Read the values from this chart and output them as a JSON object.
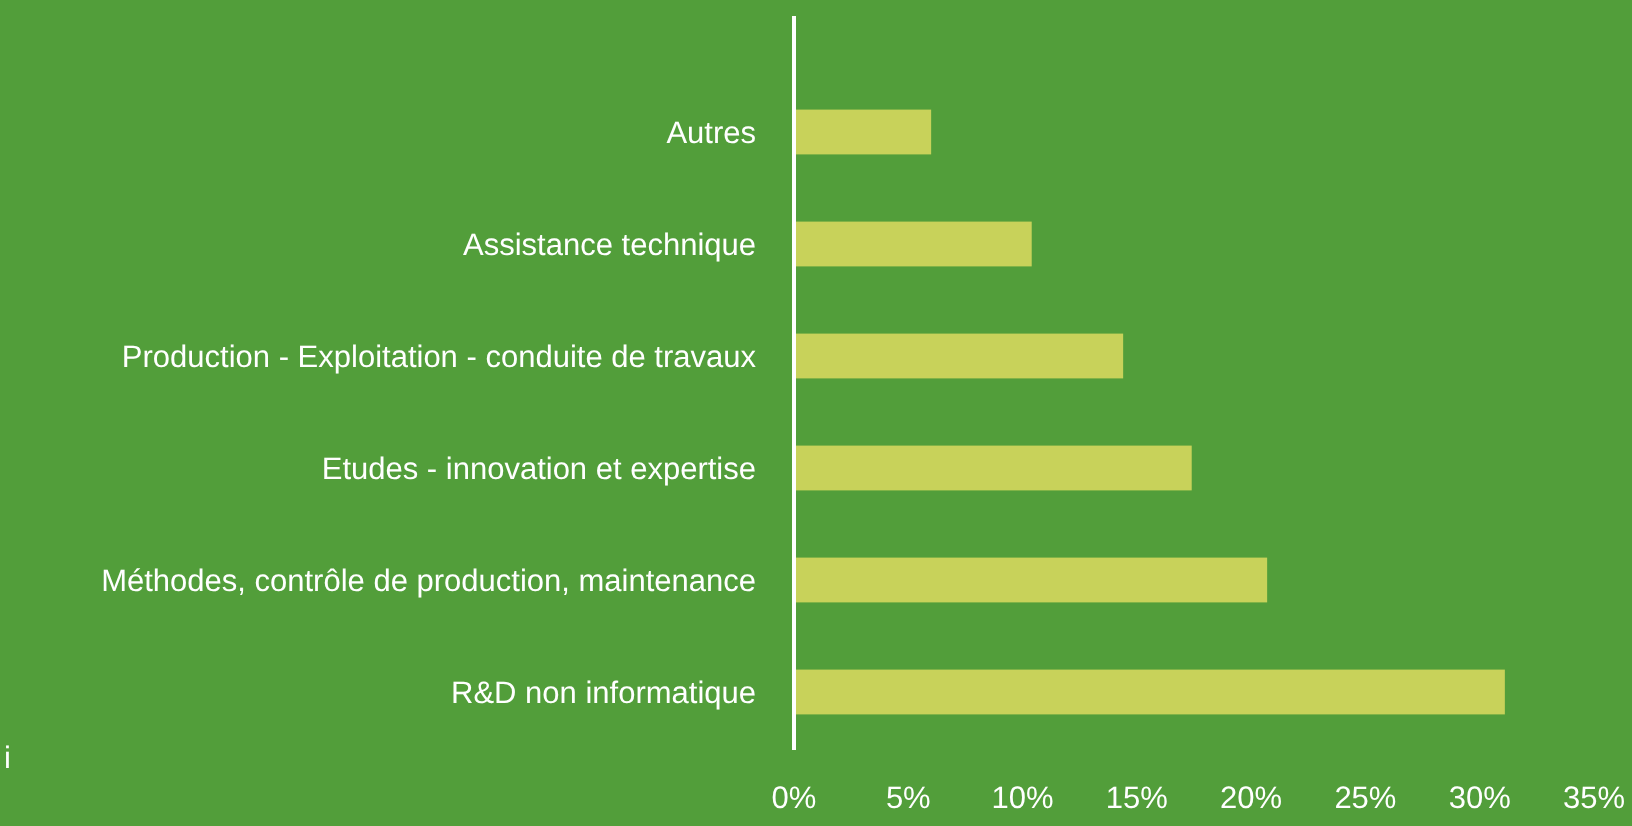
{
  "chart_data": {
    "type": "bar",
    "orientation": "horizontal",
    "categories": [
      "Autres",
      "Assistance technique",
      "Production - Exploitation - conduite de travaux",
      "Etudes - innovation et expertise",
      "Méthodes, contrôle de production, maintenance",
      "R&D non informatique"
    ],
    "values": [
      6.0,
      10.4,
      14.4,
      17.4,
      20.7,
      31.1
    ],
    "color": "#c8d25a",
    "xlim": [
      0,
      35
    ],
    "xticks": [
      {
        "value": 0,
        "label": "0%"
      },
      {
        "value": 5,
        "label": "5%"
      },
      {
        "value": 10,
        "label": "10%"
      },
      {
        "value": 15,
        "label": "15%"
      },
      {
        "value": 20,
        "label": "20%"
      },
      {
        "value": 25,
        "label": "25%"
      },
      {
        "value": 30,
        "label": "30%"
      },
      {
        "value": 35,
        "label": "35%"
      }
    ],
    "grid": false,
    "annotations": [
      "i"
    ]
  }
}
